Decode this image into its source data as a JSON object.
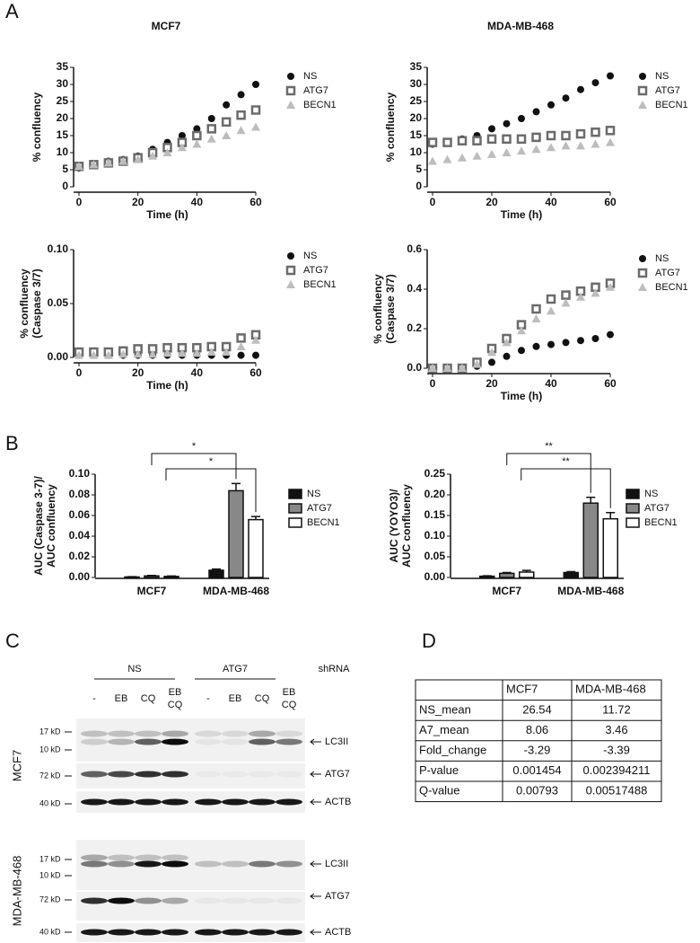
{
  "panel_labels": [
    "A",
    "B",
    "C",
    "D"
  ],
  "chart_data": [
    {
      "type": "scatter",
      "title": "MCF7",
      "xlabel": "Time (h)",
      "ylabel": [
        "% confluency"
      ],
      "x": [
        0,
        5,
        10,
        15,
        20,
        25,
        30,
        35,
        40,
        45,
        50,
        55,
        60
      ],
      "xlim": [
        0,
        60
      ],
      "xticks": [
        0,
        20,
        40,
        60
      ],
      "ylim": [
        0,
        35
      ],
      "yticks": [
        0,
        5,
        10,
        15,
        20,
        25,
        30,
        35
      ],
      "series": [
        {
          "name": "NS",
          "color": "#111111",
          "marker": "circle",
          "values": [
            5.5,
            6.5,
            7.5,
            8,
            9,
            11,
            13,
            15,
            17,
            20,
            24,
            27,
            30
          ]
        },
        {
          "name": "ATG7",
          "color": "#6b6b6b",
          "marker": "square",
          "values": [
            6,
            6.5,
            7,
            7.5,
            8.5,
            10,
            11.5,
            13,
            15,
            17,
            19,
            21,
            22.5
          ]
        },
        {
          "name": "BECN1",
          "color": "#bdbdbd",
          "marker": "triangle",
          "values": [
            6,
            6.5,
            7,
            7.5,
            8,
            9,
            10,
            11.5,
            12.5,
            14,
            15,
            16.5,
            17.5
          ]
        }
      ]
    },
    {
      "type": "scatter",
      "title": "MDA-MB-468",
      "xlabel": "Time (h)",
      "ylabel": [
        "% confluency"
      ],
      "x": [
        0,
        5,
        10,
        15,
        20,
        25,
        30,
        35,
        40,
        45,
        50,
        55,
        60
      ],
      "xlim": [
        0,
        60
      ],
      "xticks": [
        0,
        20,
        40,
        60
      ],
      "ylim": [
        0,
        35
      ],
      "yticks": [
        0,
        5,
        10,
        15,
        20,
        25,
        30,
        35
      ],
      "series": [
        {
          "name": "NS",
          "color": "#111111",
          "marker": "circle",
          "values": [
            12.5,
            13,
            14,
            15,
            17,
            18.5,
            20,
            22,
            24,
            26,
            28.5,
            30.5,
            32.5
          ]
        },
        {
          "name": "ATG7",
          "color": "#6b6b6b",
          "marker": "square",
          "values": [
            13,
            13,
            13.5,
            13.5,
            14,
            14,
            14,
            14.5,
            15,
            15,
            15.5,
            16,
            16.5
          ]
        },
        {
          "name": "BECN1",
          "color": "#bdbdbd",
          "marker": "triangle",
          "values": [
            7.5,
            8,
            8.5,
            9,
            9.5,
            10,
            10.5,
            11,
            11.5,
            12,
            12,
            12.5,
            13
          ]
        }
      ]
    },
    {
      "type": "scatter",
      "xlabel": "Time (h)",
      "ylabel": [
        "% confluency",
        "(Caspase 3/7)"
      ],
      "x": [
        0,
        5,
        10,
        15,
        20,
        25,
        30,
        35,
        40,
        45,
        50,
        55,
        60
      ],
      "xlim": [
        0,
        60
      ],
      "xticks": [
        0,
        20,
        40,
        60
      ],
      "ylim": [
        0,
        0.1
      ],
      "yticks": [
        {
          "value": 0,
          "label": "0.00"
        },
        {
          "value": 0.05,
          "label": "0.05"
        },
        {
          "value": 0.1,
          "label": "0.10"
        }
      ],
      "series": [
        {
          "name": "NS",
          "color": "#111111",
          "marker": "circle",
          "values": [
            0.002,
            0.002,
            0.002,
            0.002,
            0.002,
            0.002,
            0.002,
            0.002,
            0.002,
            0.002,
            0.002,
            0.002,
            0.002
          ]
        },
        {
          "name": "ATG7",
          "color": "#6b6b6b",
          "marker": "square",
          "values": [
            0.005,
            0.005,
            0.005,
            0.006,
            0.008,
            0.008,
            0.009,
            0.009,
            0.009,
            0.01,
            0.01,
            0.018,
            0.021
          ]
        },
        {
          "name": "BECN1",
          "color": "#bdbdbd",
          "marker": "triangle",
          "values": [
            0.002,
            0.002,
            0.002,
            0.003,
            0.003,
            0.003,
            0.004,
            0.004,
            0.004,
            0.005,
            0.005,
            0.01,
            0.016
          ]
        }
      ]
    },
    {
      "type": "scatter",
      "xlabel": "Time (h)",
      "ylabel": [
        "% confluency",
        "(Caspase 3/7)"
      ],
      "x": [
        0,
        5,
        10,
        15,
        20,
        25,
        30,
        35,
        40,
        45,
        50,
        55,
        60
      ],
      "xlim": [
        0,
        60
      ],
      "xticks": [
        0,
        20,
        40,
        60
      ],
      "ylim": [
        0,
        0.6
      ],
      "yticks": [
        {
          "value": 0,
          "label": "0.0"
        },
        {
          "value": 0.2,
          "label": "0.2"
        },
        {
          "value": 0.4,
          "label": "0.4"
        },
        {
          "value": 0.6,
          "label": "0.6"
        }
      ],
      "series": [
        {
          "name": "NS",
          "color": "#111111",
          "marker": "circle",
          "values": [
            0,
            0,
            0,
            0.01,
            0.03,
            0.06,
            0.09,
            0.11,
            0.12,
            0.13,
            0.14,
            0.15,
            0.17
          ]
        },
        {
          "name": "ATG7",
          "color": "#6b6b6b",
          "marker": "square",
          "values": [
            0,
            0,
            0,
            0.03,
            0.1,
            0.15,
            0.22,
            0.3,
            0.35,
            0.37,
            0.39,
            0.41,
            0.43
          ]
        },
        {
          "name": "BECN1",
          "color": "#bdbdbd",
          "marker": "triangle",
          "values": [
            0,
            0,
            0,
            0.02,
            0.08,
            0.13,
            0.19,
            0.25,
            0.29,
            0.33,
            0.36,
            0.38,
            0.41
          ]
        }
      ]
    },
    {
      "type": "bar",
      "ylabel": [
        "AUC (Caspase 3-7)/",
        "AUC confluency"
      ],
      "categories": [
        "MCF7",
        "MDA-MB-468"
      ],
      "ylim": [
        0,
        0.1
      ],
      "yticks": [
        {
          "value": 0,
          "label": "0.00"
        },
        {
          "value": 0.02,
          "label": "0.02"
        },
        {
          "value": 0.04,
          "label": "0.04"
        },
        {
          "value": 0.06,
          "label": "0.06"
        },
        {
          "value": 0.08,
          "label": "0.08"
        },
        {
          "value": 0.1,
          "label": "0.10"
        }
      ],
      "annotations": [
        "*",
        "*"
      ],
      "series": [
        {
          "name": "NS",
          "color": "#111111",
          "values": [
            0.0005,
            0.007
          ],
          "errors": [
            0.0003,
            0.0012
          ]
        },
        {
          "name": "ATG7",
          "color": "#888888",
          "values": [
            0.0015,
            0.084
          ],
          "errors": [
            0.0005,
            0.007
          ]
        },
        {
          "name": "BECN1",
          "color": "#ffffff",
          "values": [
            0.001,
            0.056
          ],
          "errors": [
            0.0004,
            0.003
          ]
        }
      ]
    },
    {
      "type": "bar",
      "ylabel": [
        "AUC (YOYO3)/",
        "AUC confluency"
      ],
      "categories": [
        "MCF7",
        "MDA-MB-468"
      ],
      "ylim": [
        0,
        0.25
      ],
      "yticks": [
        {
          "value": 0,
          "label": "0.00"
        },
        {
          "value": 0.05,
          "label": "0.05"
        },
        {
          "value": 0.1,
          "label": "0.10"
        },
        {
          "value": 0.15,
          "label": "0.15"
        },
        {
          "value": 0.2,
          "label": "0.20"
        },
        {
          "value": 0.25,
          "label": "0.25"
        }
      ],
      "annotations": [
        "**",
        "**"
      ],
      "series": [
        {
          "name": "NS",
          "color": "#111111",
          "values": [
            0.003,
            0.012
          ],
          "errors": [
            0.001,
            0.002
          ]
        },
        {
          "name": "ATG7",
          "color": "#888888",
          "values": [
            0.01,
            0.18
          ],
          "errors": [
            0.002,
            0.014
          ]
        },
        {
          "name": "BECN1",
          "color": "#ffffff",
          "values": [
            0.013,
            0.142
          ],
          "errors": [
            0.004,
            0.015
          ]
        }
      ]
    }
  ],
  "blot": {
    "groups": [
      "NS",
      "ATG7"
    ],
    "shrna_label": "shRNA",
    "lanes": [
      [
        "-"
      ],
      [
        "EB"
      ],
      [
        "CQ"
      ],
      [
        "EB",
        "CQ"
      ],
      [
        "-"
      ],
      [
        "EB"
      ],
      [
        "CQ"
      ],
      [
        "EB",
        "CQ"
      ]
    ],
    "cell_lines": [
      {
        "name": "MCF7",
        "strips": [
          {
            "markers": [
              "17 kD",
              "10 kD"
            ],
            "target": "LC3II"
          },
          {
            "markers": [
              "72 kD"
            ],
            "target": "ATG7"
          },
          {
            "markers": [
              "40 kD"
            ],
            "target": "ACTB"
          }
        ]
      },
      {
        "name": "MDA-MB-468",
        "strips": [
          {
            "markers": [
              "17 kD",
              "10 kD"
            ],
            "target": "LC3II"
          },
          {
            "markers": [
              "72 kD"
            ],
            "target": "ATG7"
          },
          {
            "markers": [
              "40 kD"
            ],
            "target": "ACTB"
          }
        ]
      }
    ]
  },
  "table": {
    "columns": [
      "MCF7",
      "MDA-MB-468"
    ],
    "rows": [
      [
        "NS_mean",
        "26.54",
        "11.72"
      ],
      [
        "A7_mean",
        "8.06",
        "3.46"
      ],
      [
        "Fold_change",
        "-3.29",
        "-3.39"
      ],
      [
        "P-value",
        "0.001454",
        "0.002394211"
      ],
      [
        "Q-value",
        "0.00793",
        "0.00517488"
      ]
    ]
  }
}
